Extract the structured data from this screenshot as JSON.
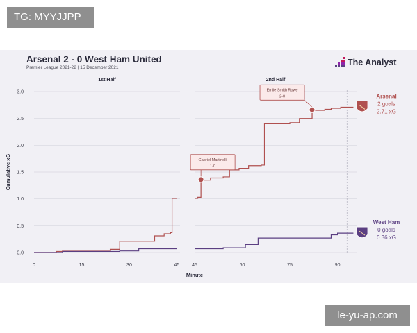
{
  "watermarks": {
    "top_left": "TG: MYYJJPP",
    "bottom_right": "le-yu-ap.com"
  },
  "header": {
    "title": "Arsenal 2 - 0 West Ham United",
    "subtitle": "Premier League 2021-22 | 15 December 2021",
    "brand": "The Analyst"
  },
  "colors": {
    "arsenal": "#b0504f",
    "west_ham": "#5b3f82",
    "grid": "#d7d5df",
    "text": "#2a2a3a",
    "card": "#f1f0f5"
  },
  "chart_data": {
    "type": "line",
    "title": "Arsenal 2 - 0 West Ham United",
    "subtitle": "Premier League 2021-22 | 15 December 2021",
    "xlabel": "Minute",
    "ylabel": "Cumulative xG",
    "ylim": [
      0,
      3.0
    ],
    "yticks": [
      "0.0",
      "0.5",
      "1.0",
      "1.5",
      "2.0",
      "2.5",
      "3.0"
    ],
    "grid": "horizontal",
    "panels": [
      {
        "label": "1st Half",
        "xlim": [
          0,
          46
        ],
        "xticks": [
          "0",
          "15",
          "30",
          "45"
        ]
      },
      {
        "label": "2nd Half",
        "xlim": [
          45,
          96
        ],
        "xticks": [
          "45",
          "60",
          "75",
          "90"
        ]
      }
    ],
    "series": [
      {
        "team": "Arsenal",
        "goals_label": "2 goals",
        "xg_label": "2.71 xG",
        "color": "#b0504f",
        "first_half": [
          [
            0,
            0
          ],
          [
            7,
            0.02
          ],
          [
            9,
            0.04
          ],
          [
            24,
            0.06
          ],
          [
            27,
            0.21
          ],
          [
            38,
            0.31
          ],
          [
            41,
            0.35
          ],
          [
            43,
            0.37
          ],
          [
            43.5,
            1.01
          ],
          [
            45,
            1.01
          ]
        ],
        "second_half": [
          [
            45,
            1.01
          ],
          [
            46,
            1.03
          ],
          [
            47,
            1.35
          ],
          [
            50,
            1.39
          ],
          [
            54,
            1.41
          ],
          [
            56,
            1.54
          ],
          [
            59,
            1.57
          ],
          [
            62,
            1.62
          ],
          [
            66,
            1.63
          ],
          [
            67,
            2.4
          ],
          [
            75,
            2.42
          ],
          [
            78,
            2.5
          ],
          [
            82,
            2.65
          ],
          [
            86,
            2.67
          ],
          [
            88,
            2.69
          ],
          [
            91,
            2.71
          ],
          [
            95,
            2.71
          ]
        ]
      },
      {
        "team": "West Ham",
        "goals_label": "0 goals",
        "xg_label": "0.36 xG",
        "color": "#5b3f82",
        "first_half": [
          [
            0,
            0
          ],
          [
            9,
            0.02
          ],
          [
            27,
            0.03
          ],
          [
            33,
            0.07
          ],
          [
            45,
            0.07
          ]
        ],
        "second_half": [
          [
            45,
            0.07
          ],
          [
            54,
            0.09
          ],
          [
            61,
            0.15
          ],
          [
            65,
            0.27
          ],
          [
            88,
            0.33
          ],
          [
            90,
            0.36
          ],
          [
            95,
            0.36
          ]
        ]
      }
    ],
    "annotations": [
      {
        "player": "Gabriel Martinelli",
        "score": "1-0",
        "minute": 47,
        "xg": 1.36
      },
      {
        "player": "Emile Smith Rowe",
        "score": "2-0",
        "minute": 82,
        "xg": 2.66
      }
    ]
  }
}
